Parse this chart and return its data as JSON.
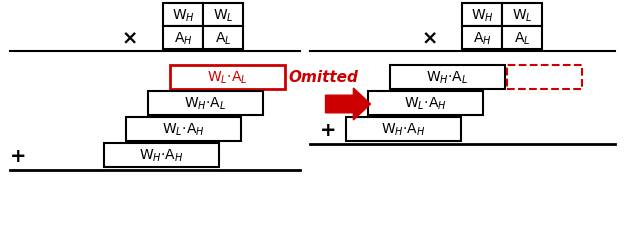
{
  "bg_color": "#ffffff",
  "text_color": "#000000",
  "red_color": "#cc0000",
  "fig_width": 6.24,
  "fig_height": 2.32,
  "font_size": 9,
  "omitted_text": "Omitted"
}
